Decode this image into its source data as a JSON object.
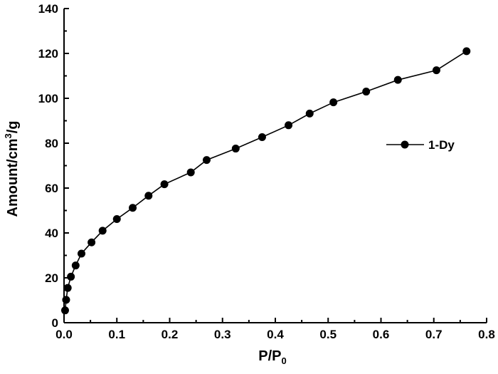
{
  "chart_data": {
    "type": "line",
    "xlabel": "P/P",
    "xlabel_sub": "0",
    "ylabel_main": "Amount/cm",
    "ylabel_sup": "3",
    "ylabel_tail": "/g",
    "xlim": [
      0.0,
      0.8
    ],
    "ylim": [
      0,
      140
    ],
    "x_ticks": [
      "0.0",
      "0.1",
      "0.2",
      "0.3",
      "0.4",
      "0.5",
      "0.6",
      "0.7",
      "0.8"
    ],
    "y_ticks": [
      "0",
      "20",
      "40",
      "60",
      "80",
      "100",
      "120",
      "140"
    ],
    "x_tick_values": [
      0.0,
      0.1,
      0.2,
      0.3,
      0.4,
      0.5,
      0.6,
      0.7,
      0.8
    ],
    "y_tick_values": [
      0,
      20,
      40,
      60,
      80,
      100,
      120,
      140
    ],
    "grid": false,
    "legend_position": "right",
    "series": [
      {
        "name": "1-Dy",
        "marker": "circle",
        "color": "#000000",
        "x": [
          0.002,
          0.004,
          0.007,
          0.013,
          0.022,
          0.033,
          0.052,
          0.073,
          0.1,
          0.13,
          0.16,
          0.19,
          0.24,
          0.27,
          0.325,
          0.375,
          0.425,
          0.465,
          0.51,
          0.572,
          0.632,
          0.705,
          0.762
        ],
        "y": [
          5.5,
          10.2,
          15.5,
          20.5,
          25.5,
          30.8,
          35.8,
          41.0,
          46.2,
          51.2,
          56.6,
          61.7,
          67.0,
          72.5,
          77.6,
          82.7,
          88.0,
          93.2,
          98.2,
          103.0,
          108.2,
          112.5,
          121.0
        ]
      }
    ]
  }
}
